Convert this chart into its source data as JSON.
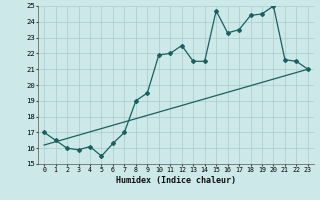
{
  "xlabel": "Humidex (Indice chaleur)",
  "bg_color": "#cce8e8",
  "grid_color": "#aacccc",
  "line_color": "#1a6060",
  "xlim": [
    -0.5,
    23.5
  ],
  "ylim": [
    15,
    25
  ],
  "xticks": [
    0,
    1,
    2,
    3,
    4,
    5,
    6,
    7,
    8,
    9,
    10,
    11,
    12,
    13,
    14,
    15,
    16,
    17,
    18,
    19,
    20,
    21,
    22,
    23
  ],
  "yticks": [
    15,
    16,
    17,
    18,
    19,
    20,
    21,
    22,
    23,
    24,
    25
  ],
  "line1_x": [
    0,
    1,
    2,
    3,
    4,
    5,
    6,
    7,
    8,
    9,
    10,
    11,
    12,
    13,
    14,
    15,
    16,
    17,
    18,
    19,
    20,
    21,
    22,
    23
  ],
  "line1_y": [
    17.0,
    16.5,
    16.0,
    15.9,
    16.1,
    15.5,
    16.3,
    17.0,
    19.0,
    19.5,
    21.9,
    22.0,
    22.5,
    21.5,
    21.5,
    24.7,
    23.3,
    23.5,
    24.4,
    24.5,
    25.0,
    21.6,
    21.5,
    21.0
  ],
  "line2_x": [
    0,
    23
  ],
  "line2_y": [
    16.2,
    21.0
  ],
  "marker": "D",
  "marker_size": 2.0,
  "line_width": 0.9
}
